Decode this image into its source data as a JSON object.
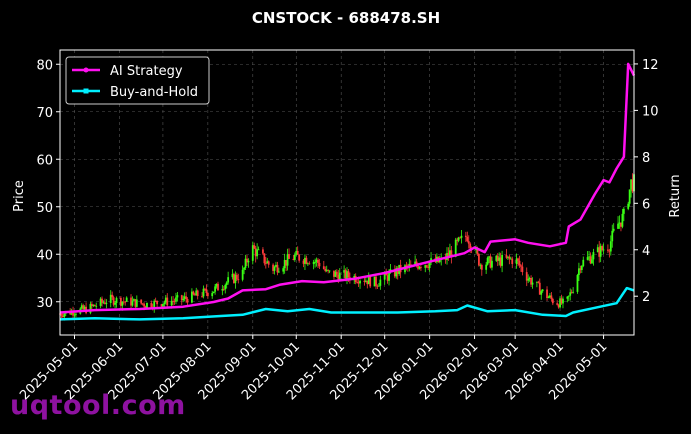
{
  "watermark": "uqtool.com",
  "chart_data": {
    "type": "line",
    "title": "CNSTOCK - 688478.SH",
    "ylabel": "Price",
    "y2label": "Return",
    "ylim": [
      23,
      83
    ],
    "y2lim": [
      0.33,
      12.6
    ],
    "yticks": [
      30,
      40,
      50,
      60,
      70,
      80
    ],
    "y2ticks": [
      2,
      4,
      6,
      8,
      10,
      12
    ],
    "xlim": [
      "2025-04-21",
      "2026-05-22"
    ],
    "xticks": [
      "2025-05-01",
      "2025-06-01",
      "2025-07-01",
      "2025-08-01",
      "2025-09-01",
      "2025-10-01",
      "2025-11-01",
      "2025-12-01",
      "2026-01-01",
      "2026-02-01",
      "2026-03-01",
      "2026-04-01",
      "2026-05-01"
    ],
    "grid": true,
    "legend_position": "top-left",
    "colors": {
      "up": "#39ff14",
      "down": "#ff3b3b",
      "ai": "#ff10f0",
      "bh": "#00f0ff",
      "background": "#000000"
    },
    "price_anchors": [
      [
        "2025-04-21",
        27.5
      ],
      [
        "2025-05-10",
        28.5
      ],
      [
        "2025-05-25",
        30.5
      ],
      [
        "2025-06-20",
        29.5
      ],
      [
        "2025-07-15",
        30.5
      ],
      [
        "2025-08-05",
        32.5
      ],
      [
        "2025-08-25",
        36
      ],
      [
        "2025-08-31",
        41.5
      ],
      [
        "2025-09-15",
        37
      ],
      [
        "2025-09-30",
        39.5
      ],
      [
        "2025-10-10",
        39
      ],
      [
        "2025-10-18",
        38
      ],
      [
        "2025-10-22",
        36
      ],
      [
        "2025-11-15",
        35
      ],
      [
        "2025-11-25",
        34
      ],
      [
        "2025-12-10",
        36.5
      ],
      [
        "2025-12-25",
        38
      ],
      [
        "2026-01-10",
        38.5
      ],
      [
        "2026-01-20",
        42
      ],
      [
        "2026-01-27",
        44
      ],
      [
        "2026-02-05",
        38
      ],
      [
        "2026-02-15",
        38.5
      ],
      [
        "2026-03-01",
        39
      ],
      [
        "2026-03-10",
        35
      ],
      [
        "2026-03-20",
        32
      ],
      [
        "2026-03-28",
        30
      ],
      [
        "2026-04-05",
        29.5
      ],
      [
        "2026-04-10",
        33
      ],
      [
        "2026-04-15",
        38
      ],
      [
        "2026-04-25",
        40
      ],
      [
        "2026-05-05",
        42
      ],
      [
        "2026-05-10",
        46
      ],
      [
        "2026-05-15",
        48
      ],
      [
        "2026-05-20",
        55
      ]
    ],
    "series": [
      {
        "name": "AI Strategy",
        "y_axis": "right",
        "points": [
          [
            "2025-04-21",
            1.3
          ],
          [
            "2025-05-15",
            1.4
          ],
          [
            "2025-06-15",
            1.45
          ],
          [
            "2025-07-15",
            1.55
          ],
          [
            "2025-08-05",
            1.75
          ],
          [
            "2025-08-15",
            1.9
          ],
          [
            "2025-08-25",
            2.25
          ],
          [
            "2025-09-10",
            2.3
          ],
          [
            "2025-09-20",
            2.5
          ],
          [
            "2025-10-05",
            2.65
          ],
          [
            "2025-10-20",
            2.6
          ],
          [
            "2025-11-10",
            2.75
          ],
          [
            "2025-12-01",
            3.0
          ],
          [
            "2025-12-20",
            3.3
          ],
          [
            "2026-01-05",
            3.55
          ],
          [
            "2026-01-25",
            3.85
          ],
          [
            "2026-02-01",
            4.1
          ],
          [
            "2026-02-08",
            3.9
          ],
          [
            "2026-02-12",
            4.35
          ],
          [
            "2026-03-01",
            4.45
          ],
          [
            "2026-03-10",
            4.3
          ],
          [
            "2026-03-25",
            4.15
          ],
          [
            "2026-04-05",
            4.3
          ],
          [
            "2026-04-07",
            5.0
          ],
          [
            "2026-04-15",
            5.3
          ],
          [
            "2026-04-25",
            6.4
          ],
          [
            "2026-05-01",
            7.0
          ],
          [
            "2026-05-05",
            6.9
          ],
          [
            "2026-05-10",
            7.5
          ],
          [
            "2026-05-15",
            8.0
          ],
          [
            "2026-05-18",
            12.0
          ],
          [
            "2026-05-22",
            11.5
          ]
        ]
      },
      {
        "name": "Buy-and-Hold",
        "y_axis": "right",
        "points": [
          [
            "2025-04-21",
            1.0
          ],
          [
            "2025-05-15",
            1.05
          ],
          [
            "2025-06-15",
            1.0
          ],
          [
            "2025-07-15",
            1.05
          ],
          [
            "2025-08-10",
            1.15
          ],
          [
            "2025-08-25",
            1.2
          ],
          [
            "2025-09-10",
            1.45
          ],
          [
            "2025-09-25",
            1.35
          ],
          [
            "2025-10-10",
            1.45
          ],
          [
            "2025-10-25",
            1.3
          ],
          [
            "2025-11-15",
            1.3
          ],
          [
            "2025-12-10",
            1.3
          ],
          [
            "2026-01-05",
            1.35
          ],
          [
            "2026-01-20",
            1.4
          ],
          [
            "2026-01-27",
            1.6
          ],
          [
            "2026-02-10",
            1.35
          ],
          [
            "2026-03-01",
            1.4
          ],
          [
            "2026-03-20",
            1.2
          ],
          [
            "2026-04-05",
            1.15
          ],
          [
            "2026-04-10",
            1.3
          ],
          [
            "2026-04-25",
            1.5
          ],
          [
            "2026-05-10",
            1.7
          ],
          [
            "2026-05-17",
            2.35
          ],
          [
            "2026-05-22",
            2.25
          ]
        ]
      }
    ]
  }
}
